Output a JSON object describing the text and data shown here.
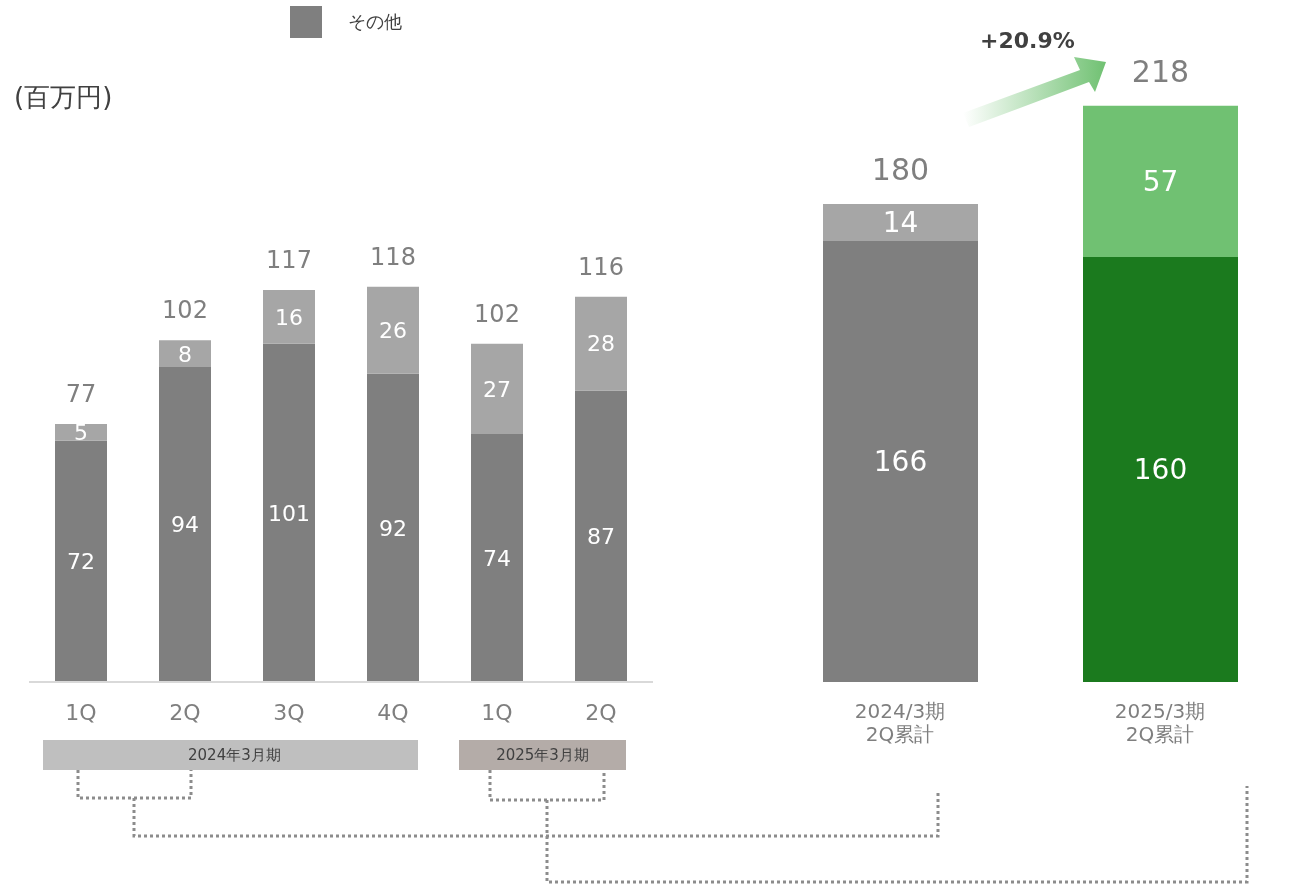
{
  "chart_data": [
    {
      "type": "bar",
      "stacked": true,
      "ylabel": "(百万円)",
      "legend": "top",
      "data_labels": true,
      "categories": [
        "1Q",
        "2Q",
        "3Q",
        "4Q",
        "1Q",
        "2Q"
      ],
      "series": [
        {
          "name": "その他",
          "color": "#7f7f7f",
          "values": [
            72,
            94,
            101,
            92,
            74,
            87
          ]
        },
        {
          "color": "#a6a6a6",
          "values": [
            5,
            8,
            16,
            26,
            27,
            28
          ]
        }
      ],
      "totals": [
        "77",
        "102",
        "117",
        "118",
        "102",
        "116"
      ],
      "annotations": [
        "2024年3月期",
        "2025年3月期"
      ]
    },
    {
      "type": "bar",
      "stacked": true,
      "data_labels": true,
      "categories": [
        "2024/3期\n2Q累計",
        "2025/3期\n2Q累計"
      ],
      "series": [
        {
          "colors": [
            "#7f7f7f",
            "#1b7a1e"
          ],
          "values": [
            166,
            160
          ]
        },
        {
          "colors": [
            "#a6a6a6",
            "#70c172"
          ],
          "values": [
            14,
            57
          ]
        }
      ],
      "totals": [
        "180",
        "218"
      ],
      "annotations": [
        "+20.9%"
      ]
    }
  ]
}
